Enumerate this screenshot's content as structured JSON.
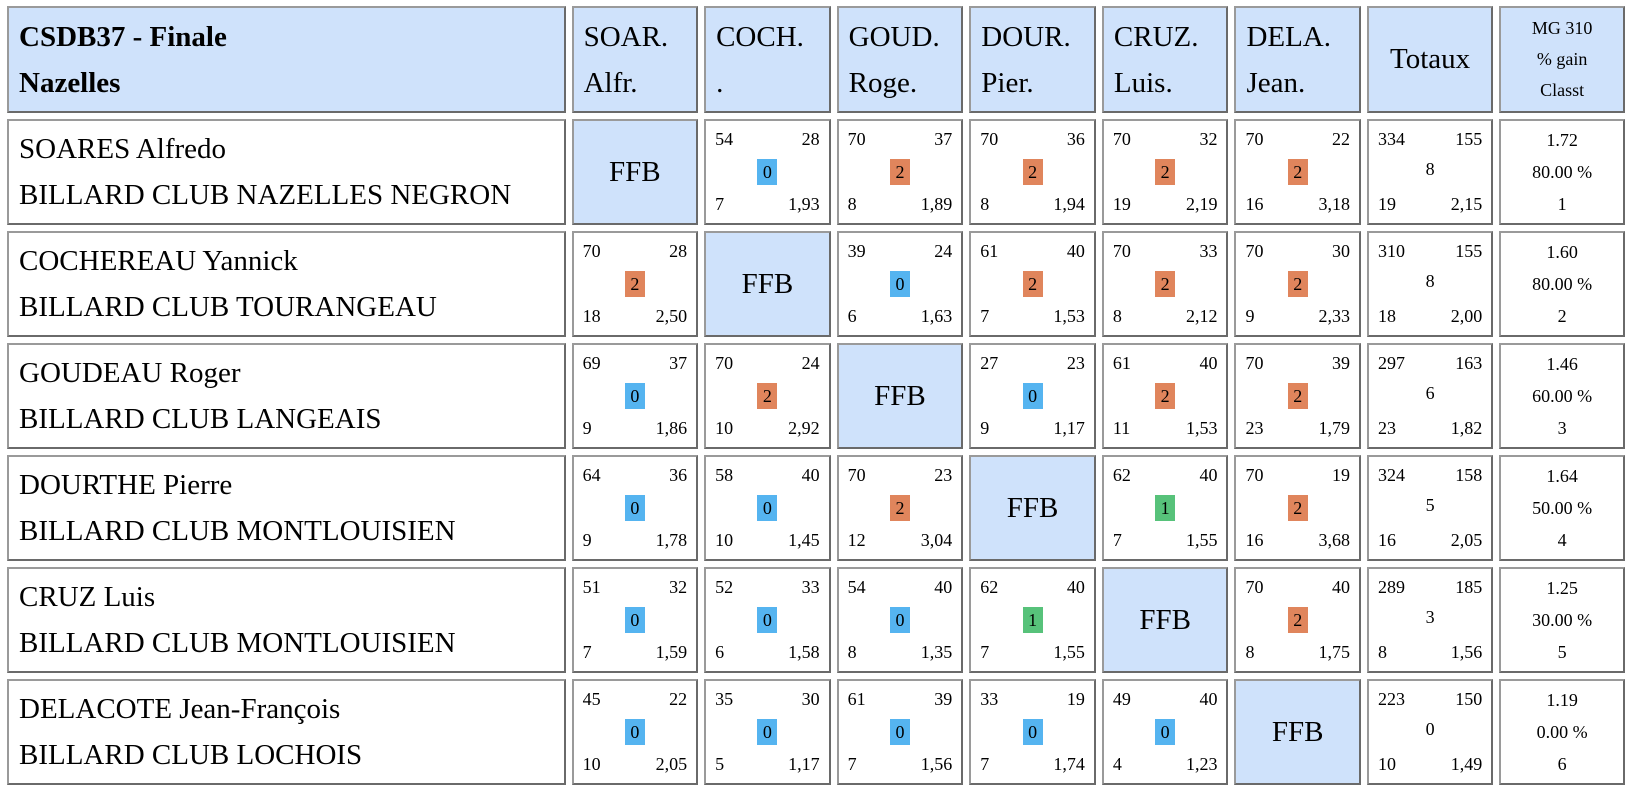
{
  "header": {
    "title_line1": "CSDB37 - Finale",
    "title_line2": "Nazelles",
    "columns": [
      {
        "l1": "SOAR.",
        "l2": "Alfr."
      },
      {
        "l1": "COCH.",
        "l2": "."
      },
      {
        "l1": "GOUD.",
        "l2": "Roge."
      },
      {
        "l1": "DOUR.",
        "l2": "Pier."
      },
      {
        "l1": "CRUZ.",
        "l2": "Luis."
      },
      {
        "l1": "DELA.",
        "l2": "Jean."
      }
    ],
    "totals": "Totaux",
    "mg_l1": "MG 310",
    "mg_l2": "% gain",
    "mg_l3": "Classt"
  },
  "ffb_label": "FFB",
  "badge_colors": {
    "0": "#55b4f0",
    "1": "#57c27a",
    "2": "#e0855c"
  },
  "players": [
    {
      "name": "SOARES Alfredo",
      "club": "BILLARD CLUB NAZELLES NEGRON",
      "cells": [
        null,
        {
          "pts": "54",
          "ser": "28",
          "res": "0",
          "rep": "7",
          "moy": "1,93"
        },
        {
          "pts": "70",
          "ser": "37",
          "res": "2",
          "rep": "8",
          "moy": "1,89"
        },
        {
          "pts": "70",
          "ser": "36",
          "res": "2",
          "rep": "8",
          "moy": "1,94"
        },
        {
          "pts": "70",
          "ser": "32",
          "res": "2",
          "rep": "19",
          "moy": "2,19"
        },
        {
          "pts": "70",
          "ser": "22",
          "res": "2",
          "rep": "16",
          "moy": "3,18"
        }
      ],
      "total": {
        "pts": "334",
        "ser": "155",
        "res": "8",
        "rep": "19",
        "moy": "2,15"
      },
      "mg": "1.72",
      "gain": "80.00 %",
      "rank": "1"
    },
    {
      "name": "COCHEREAU Yannick",
      "club": "BILLARD CLUB TOURANGEAU",
      "cells": [
        {
          "pts": "70",
          "ser": "28",
          "res": "2",
          "rep": "18",
          "moy": "2,50"
        },
        null,
        {
          "pts": "39",
          "ser": "24",
          "res": "0",
          "rep": "6",
          "moy": "1,63"
        },
        {
          "pts": "61",
          "ser": "40",
          "res": "2",
          "rep": "7",
          "moy": "1,53"
        },
        {
          "pts": "70",
          "ser": "33",
          "res": "2",
          "rep": "8",
          "moy": "2,12"
        },
        {
          "pts": "70",
          "ser": "30",
          "res": "2",
          "rep": "9",
          "moy": "2,33"
        }
      ],
      "total": {
        "pts": "310",
        "ser": "155",
        "res": "8",
        "rep": "18",
        "moy": "2,00"
      },
      "mg": "1.60",
      "gain": "80.00 %",
      "rank": "2"
    },
    {
      "name": "GOUDEAU Roger",
      "club": "BILLARD CLUB LANGEAIS",
      "cells": [
        {
          "pts": "69",
          "ser": "37",
          "res": "0",
          "rep": "9",
          "moy": "1,86"
        },
        {
          "pts": "70",
          "ser": "24",
          "res": "2",
          "rep": "10",
          "moy": "2,92"
        },
        null,
        {
          "pts": "27",
          "ser": "23",
          "res": "0",
          "rep": "9",
          "moy": "1,17"
        },
        {
          "pts": "61",
          "ser": "40",
          "res": "2",
          "rep": "11",
          "moy": "1,53"
        },
        {
          "pts": "70",
          "ser": "39",
          "res": "2",
          "rep": "23",
          "moy": "1,79"
        }
      ],
      "total": {
        "pts": "297",
        "ser": "163",
        "res": "6",
        "rep": "23",
        "moy": "1,82"
      },
      "mg": "1.46",
      "gain": "60.00 %",
      "rank": "3"
    },
    {
      "name": "DOURTHE Pierre",
      "club": "BILLARD CLUB MONTLOUISIEN",
      "cells": [
        {
          "pts": "64",
          "ser": "36",
          "res": "0",
          "rep": "9",
          "moy": "1,78"
        },
        {
          "pts": "58",
          "ser": "40",
          "res": "0",
          "rep": "10",
          "moy": "1,45"
        },
        {
          "pts": "70",
          "ser": "23",
          "res": "2",
          "rep": "12",
          "moy": "3,04"
        },
        null,
        {
          "pts": "62",
          "ser": "40",
          "res": "1",
          "rep": "7",
          "moy": "1,55"
        },
        {
          "pts": "70",
          "ser": "19",
          "res": "2",
          "rep": "16",
          "moy": "3,68"
        }
      ],
      "total": {
        "pts": "324",
        "ser": "158",
        "res": "5",
        "rep": "16",
        "moy": "2,05"
      },
      "mg": "1.64",
      "gain": "50.00 %",
      "rank": "4"
    },
    {
      "name": "CRUZ Luis",
      "club": "BILLARD CLUB MONTLOUISIEN",
      "cells": [
        {
          "pts": "51",
          "ser": "32",
          "res": "0",
          "rep": "7",
          "moy": "1,59"
        },
        {
          "pts": "52",
          "ser": "33",
          "res": "0",
          "rep": "6",
          "moy": "1,58"
        },
        {
          "pts": "54",
          "ser": "40",
          "res": "0",
          "rep": "8",
          "moy": "1,35"
        },
        {
          "pts": "62",
          "ser": "40",
          "res": "1",
          "rep": "7",
          "moy": "1,55"
        },
        null,
        {
          "pts": "70",
          "ser": "40",
          "res": "2",
          "rep": "8",
          "moy": "1,75"
        }
      ],
      "total": {
        "pts": "289",
        "ser": "185",
        "res": "3",
        "rep": "8",
        "moy": "1,56"
      },
      "mg": "1.25",
      "gain": "30.00 %",
      "rank": "5"
    },
    {
      "name": "DELACOTE Jean-François",
      "club": "BILLARD CLUB LOCHOIS",
      "cells": [
        {
          "pts": "45",
          "ser": "22",
          "res": "0",
          "rep": "10",
          "moy": "2,05"
        },
        {
          "pts": "35",
          "ser": "30",
          "res": "0",
          "rep": "5",
          "moy": "1,17"
        },
        {
          "pts": "61",
          "ser": "39",
          "res": "0",
          "rep": "7",
          "moy": "1,56"
        },
        {
          "pts": "33",
          "ser": "19",
          "res": "0",
          "rep": "7",
          "moy": "1,74"
        },
        {
          "pts": "49",
          "ser": "40",
          "res": "0",
          "rep": "4",
          "moy": "1,23"
        },
        null
      ],
      "total": {
        "pts": "223",
        "ser": "150",
        "res": "0",
        "rep": "10",
        "moy": "1,49"
      },
      "mg": "1.19",
      "gain": "0.00 %",
      "rank": "6"
    }
  ]
}
